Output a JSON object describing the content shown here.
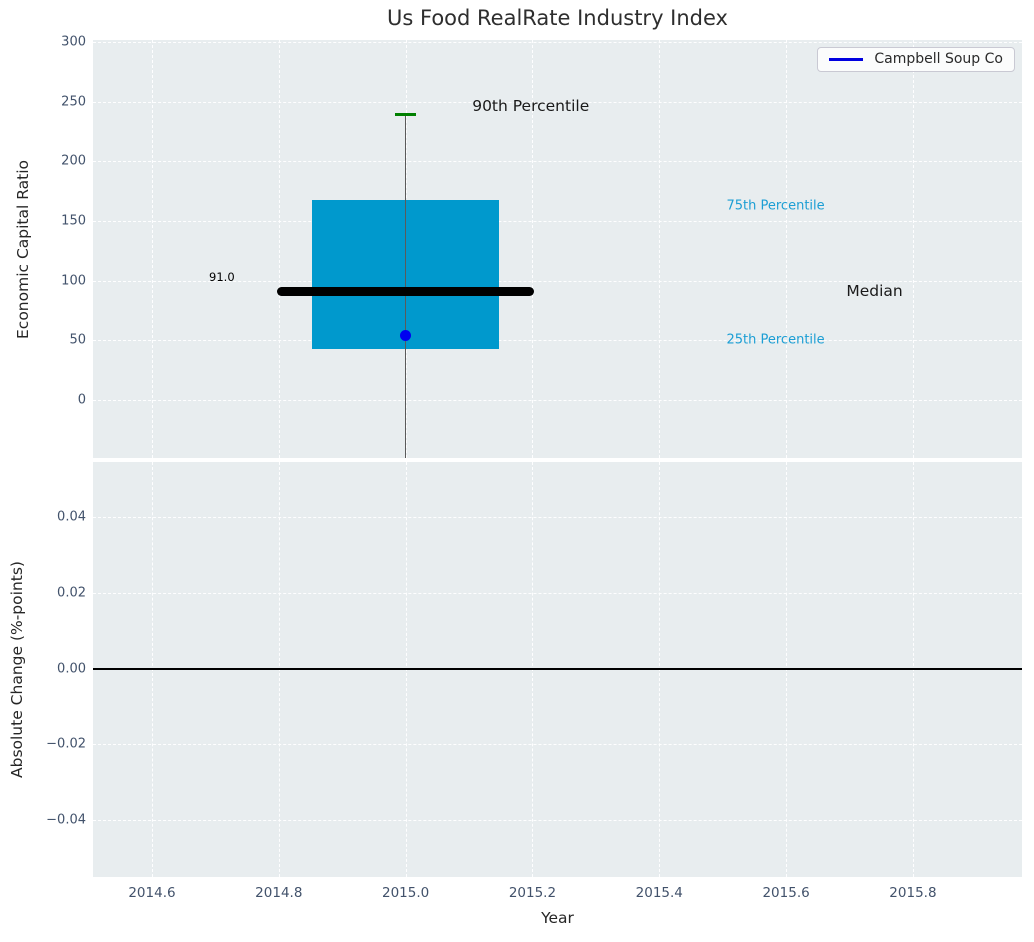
{
  "title": "Us Food RealRate Industry Index",
  "legend": {
    "label": "Campbell Soup Co"
  },
  "colors": {
    "plot_bg": "#e8edef",
    "grid": "#ffffff",
    "box_fill": "#0099cd",
    "median_line": "#000000",
    "whisker": "#5a5a5a",
    "p90_cap": "#008000",
    "company_dot": "#0000f0",
    "legend_line": "#0000e0",
    "percentile_text": "#1b9ed4",
    "tick_text": "#42526b",
    "zero_line": "#000000"
  },
  "chart_data": [
    {
      "type": "boxplot",
      "panel": "top",
      "ylabel": "Economic Capital Ratio",
      "xlim": [
        2014.507,
        2015.972
      ],
      "ylim": [
        -48.6,
        301.7
      ],
      "yticks": {
        "values": [
          0,
          50,
          100,
          150,
          200,
          250,
          300
        ],
        "labels": [
          "0",
          "50",
          "100",
          "150",
          "200",
          "250",
          "300"
        ]
      },
      "xgrid_at": [
        2014.6,
        2014.8,
        2015.0,
        2015.2,
        2015.4,
        2015.6,
        2015.8
      ],
      "grid": "white dashed",
      "legend_location": "upper right",
      "box": {
        "center_x": 2015.0,
        "p90": 239,
        "p75": 168,
        "median": 91,
        "p25": 43,
        "company_point": {
          "x": 2015.0,
          "y": 54
        },
        "box_halfwidth": 0.148,
        "median_halfwidth": 0.203,
        "cap_halfwidth": 0.017,
        "whisker_lower": "clipped at axis bottom"
      },
      "annotations": [
        {
          "text": "90th Percentile",
          "x": 2015.105,
          "y": 246,
          "kind": "label-black-large"
        },
        {
          "text": "75th Percentile",
          "x": 2015.506,
          "y": 163,
          "kind": "label-cyan"
        },
        {
          "text": "Median",
          "x": 2015.695,
          "y": 91,
          "kind": "label-black-large"
        },
        {
          "text": "25th Percentile",
          "x": 2015.506,
          "y": 50,
          "kind": "label-cyan"
        },
        {
          "text": "91.0",
          "x": 2014.69,
          "y": 103,
          "kind": "label-black-small"
        }
      ]
    },
    {
      "type": "line",
      "panel": "bottom",
      "ylabel": "Absolute Change (%-points)",
      "xlabel": "Year",
      "xlim": [
        2014.507,
        2015.972
      ],
      "ylim": [
        -0.0551,
        0.0546
      ],
      "yticks": {
        "values": [
          0.04,
          0.02,
          0.0,
          -0.02,
          -0.04
        ],
        "labels": [
          "0.04",
          "0.02",
          "0.00",
          "−0.02",
          "−0.04"
        ]
      },
      "xticks": {
        "values": [
          2014.6,
          2014.8,
          2015.0,
          2015.2,
          2015.4,
          2015.6,
          2015.8
        ],
        "labels": [
          "2014.6",
          "2014.8",
          "2015.0",
          "2015.2",
          "2015.4",
          "2015.6",
          "2015.8"
        ]
      },
      "grid": "white dashed",
      "zero_line_y": 0.0,
      "series": [
        {
          "name": "Campbell Soup Co",
          "visible_points": []
        }
      ]
    }
  ]
}
